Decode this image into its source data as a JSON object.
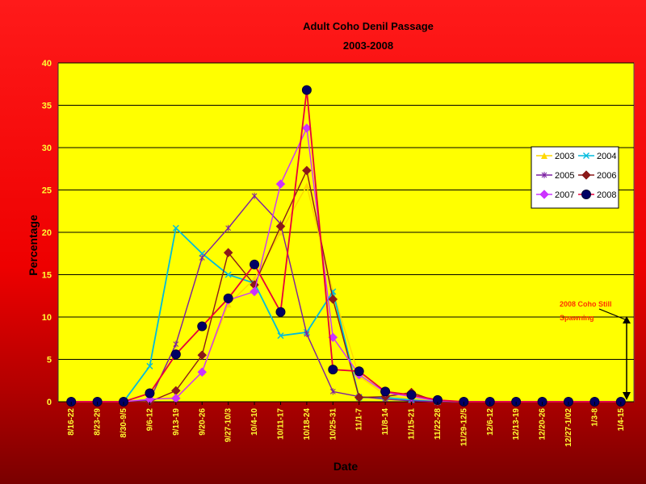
{
  "chart_data": {
    "type": "line",
    "title": "Adult Coho Denil Passage",
    "subtitle": "2003-2008",
    "xlabel": "Date",
    "ylabel": "Percentage",
    "ylim": [
      0,
      40
    ],
    "yticks": [
      "0",
      "5",
      "10",
      "15",
      "20",
      "25",
      "30",
      "35",
      "40"
    ],
    "grid": true,
    "legend_position": "right",
    "categories": [
      "8/16-22",
      "8/23-29",
      "8/30-9/5",
      "9/6-12",
      "9/13-19",
      "9/20-26",
      "9/27-10/3",
      "10/4-10",
      "10/11-17",
      "10/18-24",
      "10/25-31",
      "11/1-7",
      "11/8-14",
      "11/15-21",
      "11/22-28",
      "11/29-12/5",
      "12/6-12",
      "12/13-19",
      "12/20-26",
      "12/27-1/02",
      "1/3-8",
      "1/4-15"
    ],
    "series": [
      {
        "name": "2003",
        "color": "#ffd700",
        "marker": "triangle",
        "values": [
          0,
          0,
          0,
          0.3,
          0.5,
          3.5,
          11.5,
          14.5,
          20,
          25.5,
          13,
          3,
          0.8,
          0.3,
          0.1,
          0,
          0,
          0,
          0,
          0,
          0,
          0
        ]
      },
      {
        "name": "2004",
        "color": "#00bbdd",
        "marker": "x",
        "values": [
          0,
          0,
          0,
          4.2,
          20.5,
          17.5,
          15,
          14,
          7.8,
          8.2,
          13,
          0.5,
          0.5,
          0.2,
          0,
          0,
          0,
          0,
          0,
          0,
          0,
          0
        ]
      },
      {
        "name": "2005",
        "color": "#7b1fa2",
        "marker": "star",
        "values": [
          0,
          0,
          0,
          0.2,
          6.8,
          17,
          20.5,
          24.3,
          21,
          8,
          1.2,
          0.6,
          0.3,
          0.1,
          0,
          0,
          0,
          0,
          0,
          0,
          0,
          0
        ]
      },
      {
        "name": "2006",
        "color": "#8b1a1a",
        "marker": "diamond",
        "values": [
          0,
          0,
          0,
          0,
          1.3,
          5.5,
          17.6,
          13.8,
          20.7,
          27.3,
          12.1,
          0.5,
          0.6,
          1.1,
          0,
          0,
          0,
          0,
          0,
          0,
          0,
          0
        ]
      },
      {
        "name": "2007",
        "color": "#cc33ff",
        "marker": "diamond",
        "values": [
          0,
          0,
          0,
          0.3,
          0.4,
          3.5,
          12,
          13,
          25.7,
          32.3,
          7.6,
          3.2,
          1.1,
          0.6,
          0.1,
          0,
          0,
          0,
          0,
          0,
          0,
          0
        ]
      },
      {
        "name": "2008",
        "color": "#e8003a",
        "marker": "circle",
        "values": [
          0,
          0,
          0,
          1,
          5.6,
          8.9,
          12.2,
          16.2,
          10.6,
          36.8,
          3.8,
          3.6,
          1.2,
          0.8,
          0.2,
          0,
          0,
          0,
          0,
          0,
          0,
          0
        ]
      }
    ],
    "annotation": {
      "text_line1": "2008 Coho Still",
      "text_line2": "Spawning",
      "value": 10
    }
  }
}
